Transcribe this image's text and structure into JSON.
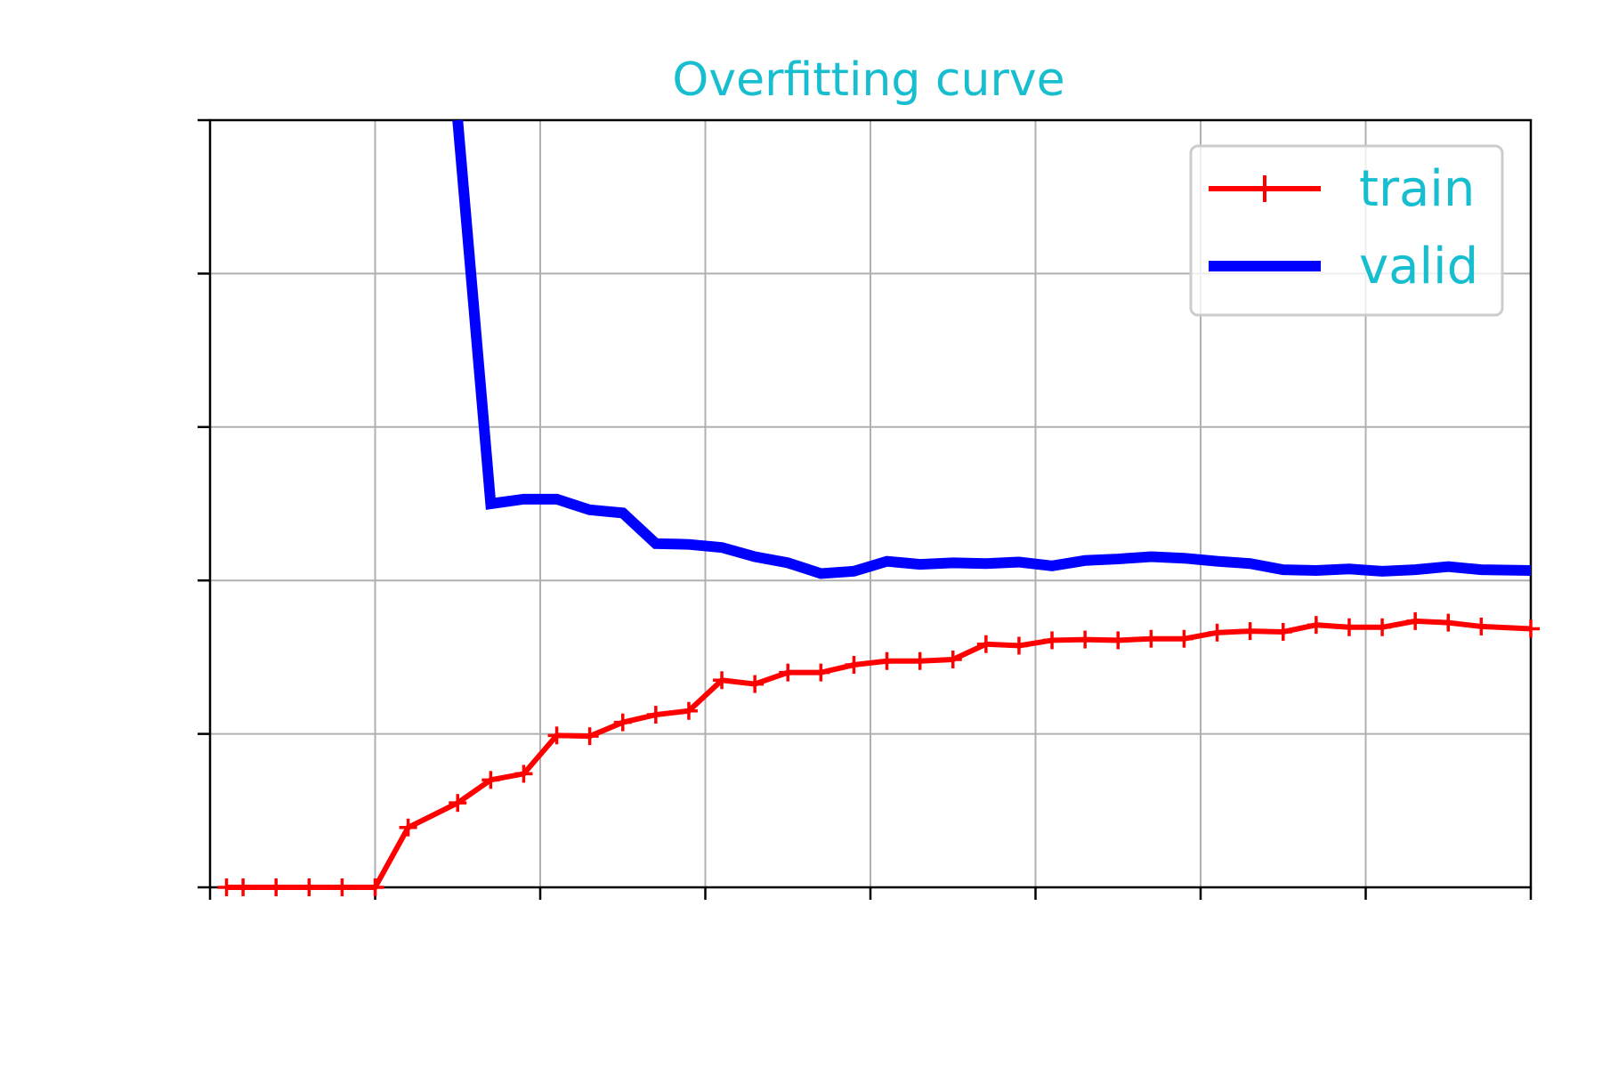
{
  "chart_data": {
    "type": "line",
    "title": "Overfitting curve",
    "title_color": "#17becf",
    "xlabel": "",
    "ylabel": "",
    "xlim": [
      0,
      80
    ],
    "ylim": [
      0,
      1
    ],
    "xticks": [
      0,
      10,
      20,
      30,
      40,
      50,
      60,
      70,
      80
    ],
    "yticks": [
      0,
      0.2,
      0.4,
      0.6,
      0.8,
      1.0
    ],
    "grid": true,
    "legend_position": "top-right",
    "legend_text_color": "#17becf",
    "series": [
      {
        "name": "train",
        "color": "#ff0000",
        "marker": "+",
        "x": [
          1,
          2,
          4,
          6,
          8,
          10,
          12,
          15,
          17,
          19,
          21,
          23,
          25,
          27,
          29,
          31,
          33,
          35,
          37,
          39,
          41,
          43,
          45,
          47,
          49,
          51,
          53,
          55,
          57,
          59,
          61,
          63,
          65,
          67,
          69,
          71,
          73,
          75,
          77,
          80
        ],
        "values": [
          0,
          0,
          0,
          0,
          0,
          0,
          0.078,
          0.11,
          0.14,
          0.148,
          0.198,
          0.197,
          0.215,
          0.225,
          0.23,
          0.27,
          0.265,
          0.28,
          0.28,
          0.29,
          0.295,
          0.295,
          0.297,
          0.317,
          0.315,
          0.322,
          0.323,
          0.322,
          0.324,
          0.324,
          0.332,
          0.334,
          0.333,
          0.342,
          0.339,
          0.339,
          0.347,
          0.345,
          0.34,
          0.337
        ]
      },
      {
        "name": "valid",
        "color": "#0000ff",
        "marker": "",
        "x": [
          15,
          17,
          19,
          21,
          23,
          25,
          27,
          29,
          31,
          33,
          35,
          37,
          39,
          41,
          43,
          45,
          47,
          49,
          51,
          53,
          55,
          57,
          59,
          61,
          63,
          65,
          67,
          69,
          71,
          73,
          75,
          77,
          80
        ],
        "values": [
          1.0,
          0.5,
          0.506,
          0.506,
          0.492,
          0.488,
          0.448,
          0.447,
          0.443,
          0.431,
          0.423,
          0.409,
          0.412,
          0.425,
          0.421,
          0.423,
          0.422,
          0.424,
          0.419,
          0.426,
          0.428,
          0.431,
          0.429,
          0.425,
          0.422,
          0.414,
          0.413,
          0.415,
          0.412,
          0.414,
          0.418,
          0.414,
          0.413
        ]
      }
    ]
  }
}
